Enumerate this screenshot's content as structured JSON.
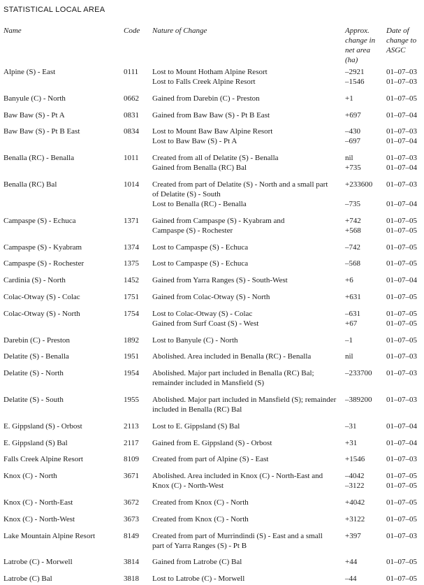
{
  "page_title": "STATISTICAL LOCAL AREA",
  "table": {
    "headers": {
      "name": "Name",
      "code": "Code",
      "nature": "Nature of Change",
      "area": "Approx.\nchange in\nnet area\n(ha)",
      "date": "Date of\nchange to\nASGC"
    },
    "rows": [
      {
        "name": "Alpine (S) - East",
        "code": "0111",
        "changes": [
          {
            "text": "Lost to Mount Hotham Alpine Resort",
            "area": "–2921",
            "date": "01–07–03"
          },
          {
            "text": "Lost to Falls Creek Alpine Resort",
            "area": "–1546",
            "date": "01–07–03"
          }
        ]
      },
      {
        "name": "Banyule (C) - North",
        "code": "0662",
        "changes": [
          {
            "text": "Gained from Darebin (C) - Preston",
            "area": "+1",
            "date": "01–07–05"
          }
        ]
      },
      {
        "name": "Baw Baw (S) - Pt A",
        "code": "0831",
        "changes": [
          {
            "text": "Gained from Baw Baw (S) - Pt B East",
            "area": "+697",
            "date": "01–07–04"
          }
        ]
      },
      {
        "name": "Baw Baw (S) - Pt B East",
        "code": "0834",
        "changes": [
          {
            "text": "Lost to Mount Baw Baw Alpine Resort",
            "area": "–430",
            "date": "01–07–03"
          },
          {
            "text": "Lost to Baw Baw (S) - Pt A",
            "area": "–697",
            "date": "01–07–04"
          }
        ]
      },
      {
        "name": "Benalla (RC) - Benalla",
        "code": "1011",
        "changes": [
          {
            "text": "Created from all of Delatite (S) - Benalla",
            "area": "nil",
            "date": "01–07–03"
          },
          {
            "text": "Gained from Benalla (RC) Bal",
            "area": "+735",
            "date": "01–07–04"
          }
        ]
      },
      {
        "name": "Benalla (RC) Bal",
        "code": "1014",
        "changes": [
          {
            "text": "Created from part of Delatite (S) - North and a small part\nof Delatite (S) - South",
            "area": "+233600",
            "date": "01–07–03"
          },
          {
            "text": "Lost to Benalla (RC) - Benalla",
            "area": "–735",
            "date": "01–07–04"
          }
        ]
      },
      {
        "name": "Campaspe (S) - Echuca",
        "code": "1371",
        "changes": [
          {
            "text": "Gained from Campaspe (S) - Kyabram and",
            "area": "+742",
            "date": "01–07–05"
          },
          {
            "text": "Campaspe (S) - Rochester",
            "area": "+568",
            "date": "01–07–05"
          }
        ]
      },
      {
        "name": "Campaspe (S) - Kyabram",
        "code": "1374",
        "changes": [
          {
            "text": "Lost to Campaspe (S) - Echuca",
            "area": "–742",
            "date": "01–07–05"
          }
        ]
      },
      {
        "name": "Campaspe (S) - Rochester",
        "code": "1375",
        "changes": [
          {
            "text": "Lost to Campaspe (S) - Echuca",
            "area": "–568",
            "date": "01–07–05"
          }
        ]
      },
      {
        "name": "Cardinia (S) - North",
        "code": "1452",
        "changes": [
          {
            "text": "Gained from Yarra Ranges (S) - South-West",
            "area": "+6",
            "date": "01–07–04"
          }
        ]
      },
      {
        "name": "Colac-Otway (S) - Colac",
        "code": "1751",
        "changes": [
          {
            "text": "Gained from Colac-Otway (S) - North",
            "area": "+631",
            "date": "01–07–05"
          }
        ]
      },
      {
        "name": "Colac-Otway (S) - North",
        "code": "1754",
        "changes": [
          {
            "text": "Lost to Colac-Otway (S) - Colac",
            "area": "–631",
            "date": "01–07–05"
          },
          {
            "text": "Gained from Surf Coast (S) - West",
            "area": "+67",
            "date": "01–07–05"
          }
        ]
      },
      {
        "name": "Darebin (C) - Preston",
        "code": "1892",
        "changes": [
          {
            "text": "Lost to Banyule (C) - North",
            "area": "–1",
            "date": "01–07–05"
          }
        ]
      },
      {
        "name": "Delatite (S) - Benalla",
        "code": "1951",
        "changes": [
          {
            "text": "Abolished. Area included in Benalla (RC) - Benalla",
            "area": "nil",
            "date": "01–07–03"
          }
        ]
      },
      {
        "name": "Delatite (S) - North",
        "code": "1954",
        "changes": [
          {
            "text": "Abolished. Major part included in Benalla (RC) Bal;\nremainder included in Mansfield (S)",
            "area": "–233700",
            "date": "01–07–03"
          }
        ]
      },
      {
        "name": "Delatite (S) - South",
        "code": "1955",
        "changes": [
          {
            "text": "Abolished. Major part included in Mansfield (S); remainder\nincluded in Benalla (RC) Bal",
            "area": "–389200",
            "date": "01–07–03"
          }
        ]
      },
      {
        "name": "E. Gippsland (S) - Orbost",
        "code": "2113",
        "changes": [
          {
            "text": "Lost to E. Gippsland (S) Bal",
            "area": "–31",
            "date": "01–07–04"
          }
        ]
      },
      {
        "name": "E. Gippsland (S) Bal",
        "code": "2117",
        "changes": [
          {
            "text": "Gained from E. Gippsland (S) - Orbost",
            "area": "+31",
            "date": "01–07–04"
          }
        ]
      },
      {
        "name": "Falls Creek Alpine Resort",
        "code": "8109",
        "changes": [
          {
            "text": "Created from part of Alpine (S) - East",
            "area": "+1546",
            "date": "01–07–03"
          }
        ]
      },
      {
        "name": "Knox (C) - North",
        "code": "3671",
        "changes": [
          {
            "text": "Abolished. Area included in Knox (C) - North-East and",
            "area": "–4042",
            "date": "01–07–05"
          },
          {
            "text": "Knox (C) - North-West",
            "area": "–3122",
            "date": "01–07–05"
          }
        ]
      },
      {
        "name": "Knox (C) - North-East",
        "code": "3672",
        "changes": [
          {
            "text": "Created from Knox (C) - North",
            "area": "+4042",
            "date": "01–07–05"
          }
        ]
      },
      {
        "name": "Knox (C) - North-West",
        "code": "3673",
        "changes": [
          {
            "text": "Created from Knox (C) - North",
            "area": "+3122",
            "date": "01–07–05"
          }
        ]
      },
      {
        "name": "Lake Mountain Alpine Resort",
        "code": "8149",
        "changes": [
          {
            "text": "Created from part of Murrindindi (S) - East and a small\npart of Yarra Ranges (S) - Pt B",
            "area": "+397",
            "date": "01–07–03"
          }
        ]
      },
      {
        "name": "Latrobe (C) - Morwell",
        "code": "3814",
        "changes": [
          {
            "text": "Gained from Latrobe (C) Bal",
            "area": "+44",
            "date": "01–07–05"
          }
        ]
      },
      {
        "name": "Latrobe (C) Bal",
        "code": "3818",
        "changes": [
          {
            "text": "Lost to Latrobe (C) - Morwell",
            "area": "–44",
            "date": "01–07–05"
          }
        ]
      }
    ]
  }
}
